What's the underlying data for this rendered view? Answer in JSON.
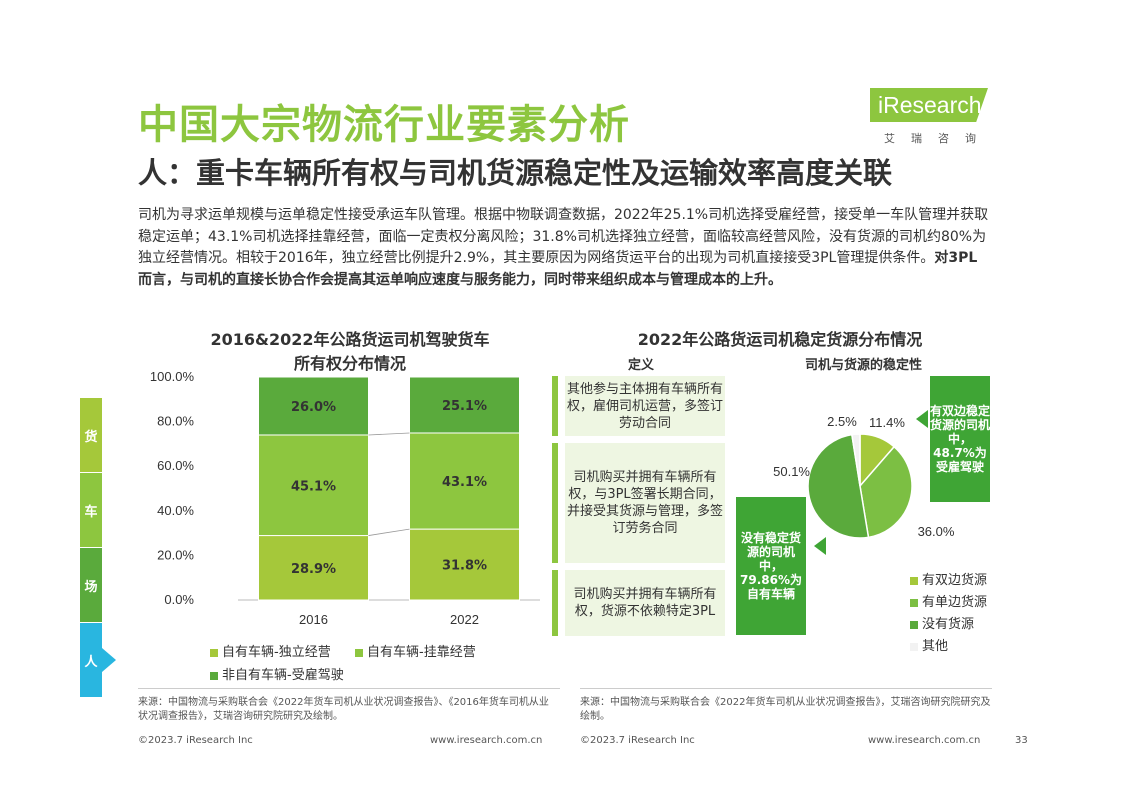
{
  "page": {
    "title": "中国大宗物流行业要素分析",
    "subtitle": "人：重卡车辆所有权与司机货源稳定性及运输效率高度关联",
    "intro_normal": "司机为寻求运单规模与运单稳定性接受承运车队管理。根据中物联调查数据，2022年25.1%司机选择受雇经营，接受单一车队管理并获取稳定运单；43.1%司机选择挂靠经营，面临一定责权分离风险；31.8%司机选择独立经营，面临较高经营风险，没有货源的司机约80%为独立经营情况。相较于2016年，独立经营比例提升2.9%，其主要原因为网络货运平台的出现为司机直接接受3PL管理提供条件。",
    "intro_bold": "对3PL而言，与司机的直接长协合作会提高其运单响应速度与服务能力，同时带来组织成本与管理成本的上升。",
    "logo_text": "iResearch",
    "logo_cn": "艾瑞咨询",
    "page_number": "33"
  },
  "side_nav": [
    {
      "label": "货",
      "color": "#a5c83a"
    },
    {
      "label": "车",
      "color": "#8dc63f"
    },
    {
      "label": "场",
      "color": "#5aaa3c"
    },
    {
      "label": "人",
      "color": "#29b6e0"
    }
  ],
  "left_chart": {
    "title_line1": "2016&2022年公路货运司机驾驶货车",
    "title_line2": "所有权分布情况",
    "legend": [
      "自有车辆-独立经营",
      "自有车辆-挂靠经营",
      "非自有车辆-受雇驾驶"
    ]
  },
  "right_chart": {
    "title": "2022年公路货运司机稳定货源分布情况",
    "col_def": "定义",
    "col_stability": "司机与货源的稳定性",
    "definitions": [
      "其他参与主体拥有车辆所有权，雇佣司机运营，多签订劳动合同",
      "司机购买并拥有车辆所有权，与3PL签署长期合同，并接受其货源与管理，多签订劳务合同",
      "司机购买并拥有车辆所有权，货源不依赖特定3PL"
    ],
    "callout_top": "有双边稳定货源的司机中，48.7%为受雇驾驶",
    "callout_bottom": "没有稳定货源的司机中，79.86%为自有车辆",
    "legend": [
      "有双边货源",
      "有单边货源",
      "没有货源",
      "其他"
    ]
  },
  "chart_data": [
    {
      "type": "bar",
      "stacked": true,
      "title": "2016&2022年公路货运司机驾驶货车所有权分布情况",
      "categories": [
        "2016",
        "2022"
      ],
      "series": [
        {
          "name": "自有车辆-独立经营",
          "values": [
            28.9,
            31.8
          ],
          "labels": [
            "28.9%",
            "31.8%"
          ],
          "color": "#a5c83a"
        },
        {
          "name": "自有车辆-挂靠经营",
          "values": [
            45.1,
            43.1
          ],
          "labels": [
            "45.1%",
            "43.1%"
          ],
          "color": "#8dc63f"
        },
        {
          "name": "非自有车辆-受雇驾驶",
          "values": [
            26.0,
            25.1
          ],
          "labels": [
            "26.0%",
            "25.1%"
          ],
          "color": "#5aaa3c"
        }
      ],
      "ylim": [
        0,
        100
      ],
      "yticks": [
        "0.0%",
        "20.0%",
        "40.0%",
        "60.0%",
        "80.0%",
        "100.0%"
      ],
      "legend_position": "bottom"
    },
    {
      "type": "pie",
      "title": "2022年公路货运司机稳定货源分布情况",
      "slices": [
        {
          "name": "有双边货源",
          "value": 11.4,
          "label": "11.4%",
          "color": "#a5c83a"
        },
        {
          "name": "有单边货源",
          "value": 36.0,
          "label": "36.0%",
          "color": "#7cbf43"
        },
        {
          "name": "没有货源",
          "value": 50.1,
          "label": "50.1%",
          "color": "#5aaa3c"
        },
        {
          "name": "其他",
          "value": 2.5,
          "label": "2.5%",
          "color": "#f2f2f2"
        }
      ],
      "legend_position": "bottom-right"
    }
  ],
  "footer": {
    "source_left": "来源：中国物流与采购联合会《2022年货车司机从业状况调查报告》、《2016年货车司机从业状况调查报告》，艾瑞咨询研究院研究及绘制。",
    "source_right": "来源：中国物流与采购联合会《2022年货车司机从业状况调查报告》，艾瑞咨询研究院研究及绘制。",
    "copyright_left": "©2023.7 iResearch Inc",
    "url_left": "www.iresearch.com.cn",
    "copyright_right": "©2023.7 iResearch Inc",
    "url_right": "www.iresearch.com.cn"
  }
}
